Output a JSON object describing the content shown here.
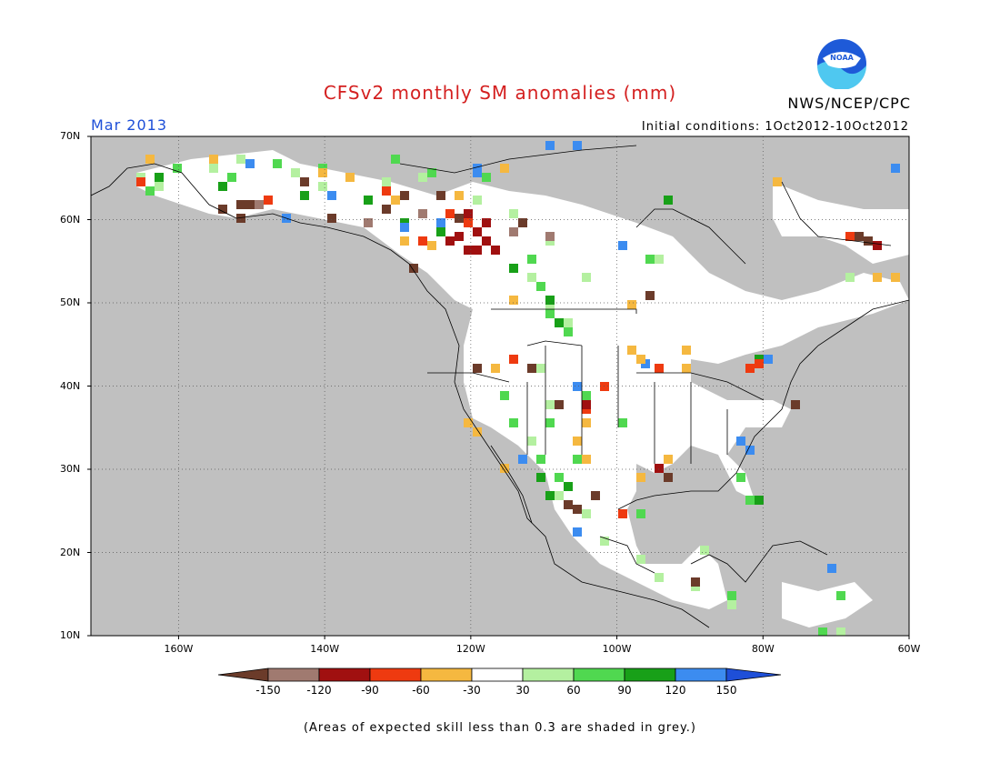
{
  "header": {
    "title": "CFSv2 monthly SM anomalies (mm)",
    "month": "Mar 2013",
    "initial_conditions": "Initial conditions: 1Oct2012-10Oct2012",
    "agency": "NWS/NCEP/CPC",
    "logo_text": "NOAA"
  },
  "map": {
    "lat_labels": [
      "70N",
      "60N",
      "50N",
      "40N",
      "30N",
      "20N",
      "10N"
    ],
    "lon_labels": [
      "160W",
      "140W",
      "120W",
      "100W",
      "80W",
      "60W"
    ],
    "colors": {
      "ocean": "#c0c0c0",
      "land_low_skill": "#c0c0c0",
      "land_neutral": "#ffffff",
      "border": "#000000"
    }
  },
  "colorbar": {
    "labels": [
      "-150",
      "-120",
      "-90",
      "-60",
      "-30",
      "30",
      "60",
      "90",
      "120",
      "150"
    ],
    "colors": [
      "#6b3b2a",
      "#a07a70",
      "#a01010",
      "#ee3a10",
      "#f5b840",
      "#ffffff",
      "#b4f0a0",
      "#50d850",
      "#18a018",
      "#3c8cf0",
      "#1e4fd8"
    ]
  },
  "footnote": "(Areas of expected skill less than 0.3 are shaded in grey.)"
}
